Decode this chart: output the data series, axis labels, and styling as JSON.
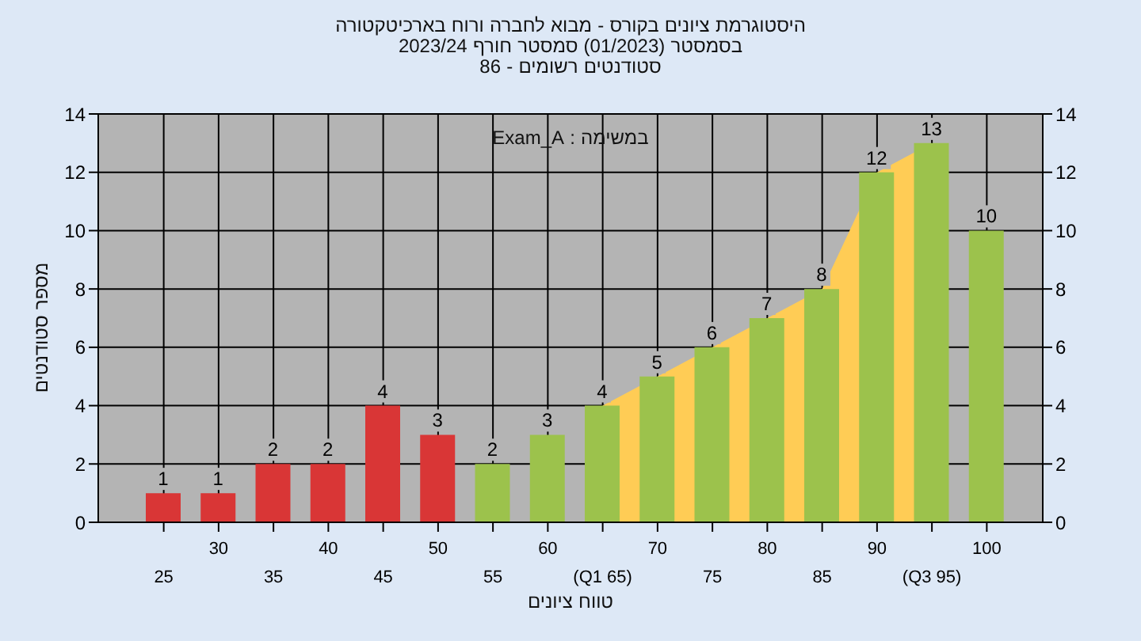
{
  "chart_data": {
    "type": "bar",
    "title": "היסטוגרמת ציונים בקורס - מבוא לחברה ורוח בארכיטקטורה",
    "subtitle": "בסמסטר (01/2023) סמסטר חורף 2023/24\nסטודנטים רשומים - 86",
    "xlabel": "טווח ציונים",
    "ylabel": "מספר סטודנטים",
    "annotations": [
      "במשימה : Exam_A"
    ],
    "categories": [
      "25",
      "30",
      "35",
      "40",
      "45",
      "50",
      "55",
      "60",
      "(Q1 65)",
      "70",
      "75",
      "80",
      "85",
      "90",
      "(Q3 95)",
      "100"
    ],
    "series": [
      {
        "type": "area",
        "color": "#ffcc55",
        "values": [
          null,
          null,
          null,
          null,
          null,
          null,
          null,
          null,
          4,
          5,
          6,
          7,
          8,
          12,
          13,
          null
        ],
        "value_labels": [
          null,
          null,
          null,
          null,
          null,
          null,
          null,
          null,
          null,
          null,
          null,
          null,
          null,
          null,
          null,
          null
        ]
      },
      {
        "colors": [
          "#d93636",
          "#d93636",
          "#d93636",
          "#d93636",
          "#d93636",
          "#d93636",
          "#9cc24c",
          "#9cc24c",
          "#9cc24c",
          "#9cc24c",
          "#9cc24c",
          "#9cc24c",
          "#9cc24c",
          "#9cc24c",
          "#9cc24c",
          "#9cc24c"
        ],
        "values": [
          1,
          1,
          2,
          2,
          4,
          3,
          2,
          3,
          4,
          5,
          6,
          7,
          8,
          12,
          13,
          10
        ]
      }
    ],
    "ylim": [
      0,
      14
    ],
    "yticks": [
      0,
      2,
      4,
      6,
      8,
      10,
      12,
      14
    ],
    "y2lim": [
      0,
      14
    ],
    "y2ticks": [
      0,
      2,
      4,
      6,
      8,
      10,
      12,
      14
    ],
    "data_labels": true,
    "grid": true,
    "legend": false
  }
}
